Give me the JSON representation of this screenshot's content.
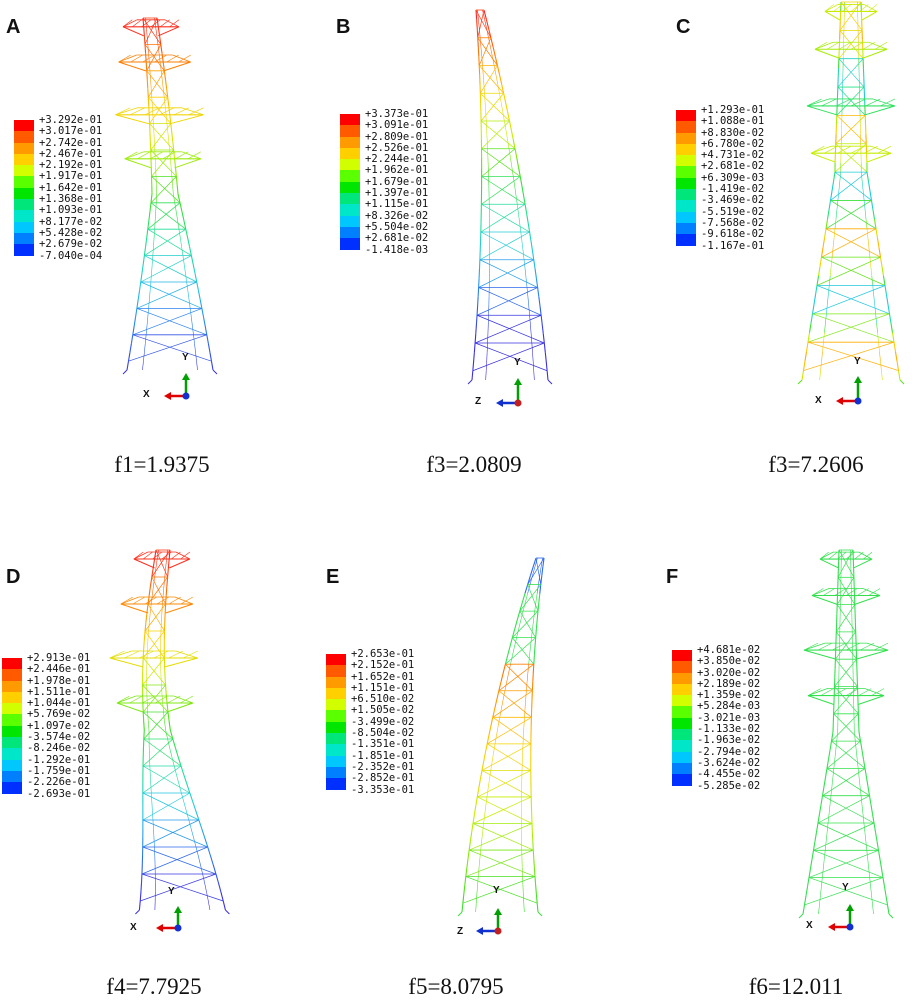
{
  "legend_colors": [
    "#ff0000",
    "#ff5a00",
    "#ff9a00",
    "#ffcf00",
    "#d2ff00",
    "#5aff00",
    "#00e600",
    "#00e67a",
    "#00e6c8",
    "#00c8ff",
    "#0080ff",
    "#0030ff",
    "#0000e0"
  ],
  "panels": [
    {
      "label": "A",
      "caption": "f1=1.9375",
      "axis_h": "X",
      "axis_v": "Y",
      "legend": [
        "+3.292e-01",
        "+3.017e-01",
        "+2.742e-01",
        "+2.467e-01",
        "+2.192e-01",
        "+1.917e-01",
        "+1.642e-01",
        "+1.368e-01",
        "+1.093e-01",
        "+8.177e-02",
        "+5.428e-02",
        "+2.679e-02",
        "-7.040e-04"
      ]
    },
    {
      "label": "B",
      "caption": "f3=2.0809",
      "axis_h": "Z",
      "axis_v": "Y",
      "legend": [
        "+3.373e-01",
        "+3.091e-01",
        "+2.809e-01",
        "+2.526e-01",
        "+2.244e-01",
        "+1.962e-01",
        "+1.679e-01",
        "+1.397e-01",
        "+1.115e-01",
        "+8.326e-02",
        "+5.504e-02",
        "+2.681e-02",
        "-1.418e-03"
      ]
    },
    {
      "label": "C",
      "caption": "f3=7.2606",
      "axis_h": "X",
      "axis_v": "Y",
      "legend": [
        "+1.293e-01",
        "+1.088e-01",
        "+8.830e-02",
        "+6.780e-02",
        "+4.731e-02",
        "+2.681e-02",
        "+6.309e-03",
        "-1.419e-02",
        "-3.469e-02",
        "-5.519e-02",
        "-7.568e-02",
        "-9.618e-02",
        "-1.167e-01"
      ]
    },
    {
      "label": "D",
      "caption": "f4=7.7925",
      "axis_h": "X",
      "axis_v": "Y",
      "legend": [
        "+2.913e-01",
        "+2.446e-01",
        "+1.978e-01",
        "+1.511e-01",
        "+1.044e-01",
        "+5.769e-02",
        "+1.097e-02",
        "-3.574e-02",
        "-8.246e-02",
        "-1.292e-01",
        "-1.759e-01",
        "-2.226e-01",
        "-2.693e-01"
      ]
    },
    {
      "label": "E",
      "caption": "f5=8.0795",
      "axis_h": "Z",
      "axis_v": "Y",
      "legend": [
        "+2.653e-01",
        "+2.152e-01",
        "+1.652e-01",
        "+1.151e-01",
        "+6.510e-02",
        "+1.505e-02",
        "-3.499e-02",
        "-8.504e-02",
        "-1.351e-01",
        "-1.851e-01",
        "-2.352e-01",
        "-2.852e-01",
        "-3.353e-01"
      ]
    },
    {
      "label": "F",
      "caption": "f6=12.011",
      "axis_h": "X",
      "axis_v": "Y",
      "legend": [
        "+4.681e-02",
        "+3.850e-02",
        "+3.020e-02",
        "+2.189e-02",
        "+1.359e-02",
        "+5.284e-03",
        "-3.021e-03",
        "-1.133e-02",
        "-1.963e-02",
        "-2.794e-02",
        "-3.624e-02",
        "-4.455e-02",
        "-5.285e-02"
      ]
    }
  ]
}
